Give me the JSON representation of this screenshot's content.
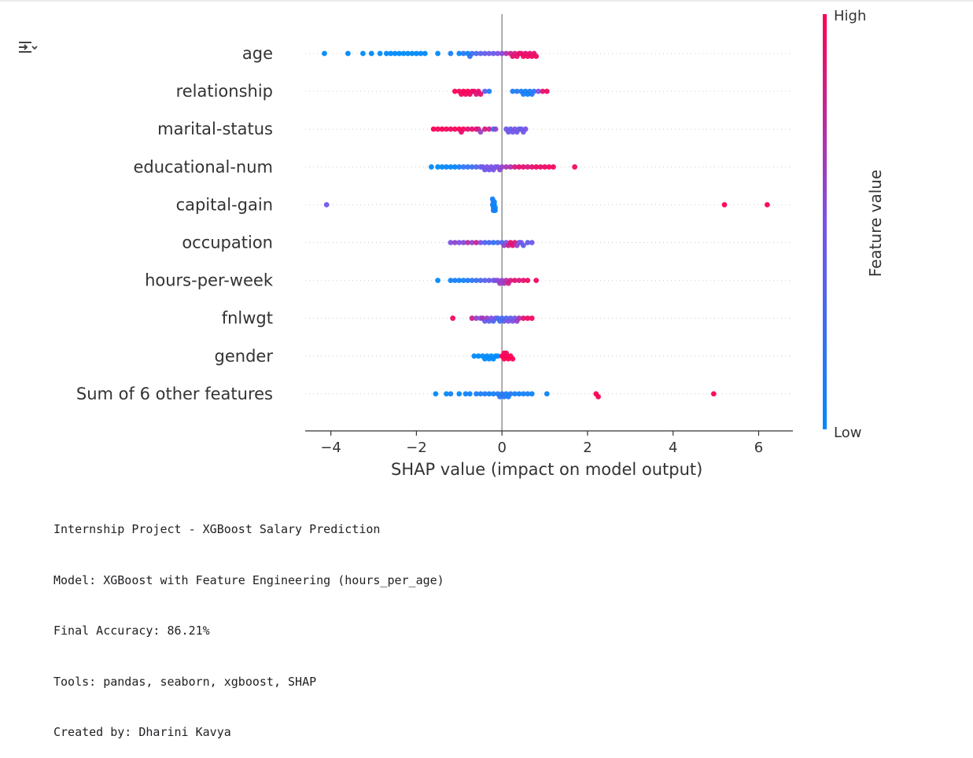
{
  "toolbar": {
    "output_icon": "output-settings-icon"
  },
  "chart_data": {
    "type": "scatter",
    "subtype": "shap-beeswarm",
    "title": "",
    "xlabel": "SHAP value (impact on model output)",
    "ylabel": "",
    "xlim": [
      -4.6,
      6.8
    ],
    "xticks": [
      -4,
      -2,
      0,
      2,
      4,
      6
    ],
    "xtick_labels": [
      "−4",
      "−2",
      "0",
      "2",
      "4",
      "6"
    ],
    "grid": false,
    "features": [
      "age",
      "relationship",
      "marital-status",
      "educational-num",
      "capital-gain",
      "occupation",
      "hours-per-week",
      "fnlwgt",
      "gender",
      "Sum of 6 other features"
    ],
    "colorbar": {
      "label": "Feature value",
      "high_label": "High",
      "low_label": "Low",
      "low_color": "#008afb",
      "mid_color": "#7c52e6",
      "high_color": "#ff0052"
    },
    "series": [
      {
        "feature": "age",
        "points": [
          [
            -4.15,
            0.0
          ],
          [
            -3.6,
            0.0
          ],
          [
            -3.25,
            0.0
          ],
          [
            -3.05,
            0.0
          ],
          [
            -2.85,
            0.0
          ],
          [
            -2.7,
            0.0
          ],
          [
            -2.6,
            0.0
          ],
          [
            -2.5,
            0.0
          ],
          [
            -2.4,
            0.0
          ],
          [
            -2.3,
            0.0
          ],
          [
            -2.2,
            0.0
          ],
          [
            -2.1,
            0.0
          ],
          [
            -2.0,
            0.0
          ],
          [
            -1.9,
            0.0
          ],
          [
            -1.8,
            0.0
          ],
          [
            -1.5,
            0.0
          ],
          [
            -1.2,
            0.1
          ],
          [
            -1.0,
            0.0
          ],
          [
            -0.9,
            0.2
          ],
          [
            -0.8,
            0.0
          ],
          [
            -0.75,
            0.2
          ],
          [
            -0.7,
            0.25
          ],
          [
            -0.6,
            0.3
          ],
          [
            -0.5,
            0.35
          ],
          [
            -0.4,
            0.4
          ],
          [
            -0.3,
            0.45
          ],
          [
            -0.2,
            0.4
          ],
          [
            -0.1,
            0.5
          ],
          [
            0.0,
            0.55
          ],
          [
            0.1,
            0.7
          ],
          [
            0.2,
            0.8
          ],
          [
            0.25,
            0.9
          ],
          [
            0.3,
            0.85
          ],
          [
            0.35,
            0.9
          ],
          [
            0.4,
            0.95
          ],
          [
            0.45,
            0.9
          ],
          [
            0.5,
            0.95
          ],
          [
            0.55,
            0.9
          ],
          [
            0.6,
            0.95
          ],
          [
            0.65,
            0.9
          ],
          [
            0.7,
            0.95
          ],
          [
            0.75,
            0.9
          ],
          [
            0.8,
            0.95
          ]
        ]
      },
      {
        "feature": "relationship",
        "points": [
          [
            -1.1,
            1.0
          ],
          [
            -1.0,
            0.95
          ],
          [
            -0.95,
            0.95
          ],
          [
            -0.9,
            1.0
          ],
          [
            -0.85,
            0.95
          ],
          [
            -0.8,
            1.0
          ],
          [
            -0.75,
            0.95
          ],
          [
            -0.7,
            0.9
          ],
          [
            -0.65,
            0.95
          ],
          [
            -0.6,
            0.85
          ],
          [
            -0.55,
            0.9
          ],
          [
            -0.5,
            0.9
          ],
          [
            -0.4,
            0.4
          ],
          [
            -0.3,
            0.1
          ],
          [
            0.25,
            0.1
          ],
          [
            0.35,
            0.15
          ],
          [
            0.45,
            0.1
          ],
          [
            0.5,
            0.1
          ],
          [
            0.55,
            0.1
          ],
          [
            0.6,
            0.05
          ],
          [
            0.65,
            0.1
          ],
          [
            0.7,
            0.15
          ],
          [
            0.75,
            0.2
          ],
          [
            0.85,
            0.5
          ],
          [
            0.95,
            0.9
          ],
          [
            1.05,
            0.95
          ]
        ]
      },
      {
        "feature": "marital-status",
        "points": [
          [
            -1.6,
            1.0
          ],
          [
            -1.5,
            0.95
          ],
          [
            -1.4,
            1.0
          ],
          [
            -1.3,
            0.95
          ],
          [
            -1.2,
            0.95
          ],
          [
            -1.1,
            0.95
          ],
          [
            -1.0,
            1.0
          ],
          [
            -0.95,
            0.9
          ],
          [
            -0.9,
            0.95
          ],
          [
            -0.8,
            0.9
          ],
          [
            -0.7,
            0.9
          ],
          [
            -0.6,
            0.95
          ],
          [
            -0.55,
            0.8
          ],
          [
            -0.5,
            0.6
          ],
          [
            -0.4,
            0.85
          ],
          [
            -0.3,
            0.8
          ],
          [
            -0.2,
            0.2
          ],
          [
            -0.15,
            0.6
          ],
          [
            0.1,
            0.45
          ],
          [
            0.15,
            0.45
          ],
          [
            0.2,
            0.4
          ],
          [
            0.25,
            0.45
          ],
          [
            0.3,
            0.5
          ],
          [
            0.35,
            0.45
          ],
          [
            0.4,
            0.45
          ],
          [
            0.45,
            0.4
          ],
          [
            0.5,
            0.45
          ],
          [
            0.55,
            0.5
          ]
        ]
      },
      {
        "feature": "educational-num",
        "points": [
          [
            -1.65,
            0.0
          ],
          [
            -1.5,
            0.0
          ],
          [
            -1.4,
            0.0
          ],
          [
            -1.3,
            0.05
          ],
          [
            -1.2,
            0.0
          ],
          [
            -1.1,
            0.05
          ],
          [
            -1.0,
            0.1
          ],
          [
            -0.9,
            0.2
          ],
          [
            -0.8,
            0.2
          ],
          [
            -0.7,
            0.25
          ],
          [
            -0.6,
            0.3
          ],
          [
            -0.5,
            0.4
          ],
          [
            -0.45,
            0.45
          ],
          [
            -0.4,
            0.45
          ],
          [
            -0.35,
            0.5
          ],
          [
            -0.3,
            0.45
          ],
          [
            -0.25,
            0.5
          ],
          [
            -0.2,
            0.5
          ],
          [
            -0.15,
            0.45
          ],
          [
            -0.1,
            0.5
          ],
          [
            -0.05,
            0.55
          ],
          [
            0.0,
            0.6
          ],
          [
            0.1,
            0.65
          ],
          [
            0.2,
            0.7
          ],
          [
            0.3,
            0.85
          ],
          [
            0.4,
            0.9
          ],
          [
            0.5,
            0.9
          ],
          [
            0.6,
            0.85
          ],
          [
            0.7,
            0.9
          ],
          [
            0.8,
            0.95
          ],
          [
            0.9,
            0.9
          ],
          [
            1.0,
            0.95
          ],
          [
            1.1,
            0.95
          ],
          [
            1.2,
            0.95
          ],
          [
            1.7,
            0.95
          ]
        ]
      },
      {
        "feature": "capital-gain",
        "points": [
          [
            -4.1,
            0.45
          ],
          [
            -0.22,
            0.05
          ],
          [
            -0.2,
            0.05
          ],
          [
            -0.18,
            0.05
          ],
          [
            -0.16,
            0.05
          ],
          [
            -0.2,
            0.1
          ],
          [
            -0.18,
            0.1
          ],
          [
            -0.2,
            0.15
          ],
          [
            -0.16,
            0.05
          ],
          [
            -0.22,
            0.1
          ],
          [
            5.2,
            1.0
          ],
          [
            6.2,
            1.0
          ]
        ]
      },
      {
        "feature": "occupation",
        "points": [
          [
            -1.2,
            0.5
          ],
          [
            -1.1,
            0.6
          ],
          [
            -1.0,
            0.5
          ],
          [
            -0.9,
            0.55
          ],
          [
            -0.8,
            0.7
          ],
          [
            -0.7,
            0.6
          ],
          [
            -0.6,
            0.8
          ],
          [
            -0.5,
            0.5
          ],
          [
            -0.4,
            0.3
          ],
          [
            -0.3,
            0.3
          ],
          [
            -0.2,
            0.2
          ],
          [
            -0.1,
            0.3
          ],
          [
            0.0,
            0.3
          ],
          [
            0.05,
            0.6
          ],
          [
            0.1,
            0.5
          ],
          [
            0.15,
            0.8
          ],
          [
            0.2,
            0.9
          ],
          [
            0.25,
            0.9
          ],
          [
            0.3,
            0.85
          ],
          [
            0.35,
            0.6
          ],
          [
            0.4,
            0.5
          ],
          [
            0.45,
            0.45
          ],
          [
            0.5,
            0.4
          ],
          [
            0.6,
            0.4
          ],
          [
            0.7,
            0.45
          ]
        ]
      },
      {
        "feature": "hours-per-week",
        "points": [
          [
            -1.5,
            0.0
          ],
          [
            -1.2,
            0.05
          ],
          [
            -1.1,
            0.1
          ],
          [
            -1.0,
            0.05
          ],
          [
            -0.9,
            0.1
          ],
          [
            -0.8,
            0.1
          ],
          [
            -0.7,
            0.2
          ],
          [
            -0.6,
            0.2
          ],
          [
            -0.5,
            0.3
          ],
          [
            -0.4,
            0.35
          ],
          [
            -0.3,
            0.4
          ],
          [
            -0.2,
            0.5
          ],
          [
            -0.15,
            0.45
          ],
          [
            -0.1,
            0.55
          ],
          [
            -0.05,
            0.6
          ],
          [
            0.0,
            0.6
          ],
          [
            0.05,
            0.65
          ],
          [
            0.1,
            0.7
          ],
          [
            0.15,
            0.8
          ],
          [
            0.2,
            0.85
          ],
          [
            0.3,
            0.9
          ],
          [
            0.4,
            0.85
          ],
          [
            0.5,
            0.9
          ],
          [
            0.6,
            0.95
          ],
          [
            0.8,
            0.95
          ]
        ]
      },
      {
        "feature": "fnlwgt",
        "points": [
          [
            -1.15,
            0.95
          ],
          [
            -0.7,
            0.8
          ],
          [
            -0.6,
            0.6
          ],
          [
            -0.5,
            0.5
          ],
          [
            -0.45,
            0.7
          ],
          [
            -0.4,
            0.4
          ],
          [
            -0.35,
            0.6
          ],
          [
            -0.3,
            0.4
          ],
          [
            -0.25,
            0.5
          ],
          [
            -0.2,
            0.3
          ],
          [
            -0.15,
            0.5
          ],
          [
            -0.1,
            0.3
          ],
          [
            -0.05,
            0.2
          ],
          [
            0.0,
            0.3
          ],
          [
            0.05,
            0.4
          ],
          [
            0.1,
            0.3
          ],
          [
            0.15,
            0.5
          ],
          [
            0.2,
            0.4
          ],
          [
            0.25,
            0.5
          ],
          [
            0.3,
            0.45
          ],
          [
            0.35,
            0.6
          ],
          [
            0.4,
            0.7
          ],
          [
            0.5,
            0.9
          ],
          [
            0.6,
            0.95
          ],
          [
            0.7,
            0.95
          ]
        ]
      },
      {
        "feature": "gender",
        "points": [
          [
            -0.65,
            0.0
          ],
          [
            -0.55,
            0.0
          ],
          [
            -0.45,
            0.0
          ],
          [
            -0.4,
            0.0
          ],
          [
            -0.35,
            0.0
          ],
          [
            -0.3,
            0.0
          ],
          [
            -0.25,
            0.0
          ],
          [
            -0.2,
            0.0
          ],
          [
            -0.15,
            0.0
          ],
          [
            -0.1,
            0.0
          ],
          [
            0.0,
            1.0
          ],
          [
            0.05,
            1.0
          ],
          [
            0.1,
            1.0
          ],
          [
            0.15,
            1.0
          ],
          [
            0.2,
            1.0
          ],
          [
            0.25,
            1.0
          ],
          [
            0.1,
            0.95
          ],
          [
            0.05,
            0.95
          ]
        ]
      },
      {
        "feature": "Sum of 6 other features",
        "points": [
          [
            -1.55,
            0.0
          ],
          [
            -1.3,
            0.0
          ],
          [
            -1.2,
            0.1
          ],
          [
            -1.0,
            0.0
          ],
          [
            -0.85,
            0.05
          ],
          [
            -0.75,
            0.05
          ],
          [
            -0.6,
            0.1
          ],
          [
            -0.5,
            0.1
          ],
          [
            -0.4,
            0.15
          ],
          [
            -0.3,
            0.05
          ],
          [
            -0.2,
            0.1
          ],
          [
            -0.1,
            0.1
          ],
          [
            -0.05,
            0.15
          ],
          [
            0.0,
            0.2
          ],
          [
            0.05,
            0.15
          ],
          [
            0.1,
            0.1
          ],
          [
            0.15,
            0.1
          ],
          [
            0.2,
            0.15
          ],
          [
            0.3,
            0.1
          ],
          [
            0.4,
            0.05
          ],
          [
            0.5,
            0.1
          ],
          [
            0.6,
            0.1
          ],
          [
            0.7,
            0.05
          ],
          [
            1.05,
            0.05
          ],
          [
            2.2,
            1.0
          ],
          [
            2.25,
            1.0
          ],
          [
            4.95,
            1.0
          ]
        ]
      }
    ]
  },
  "console": {
    "lines": [
      "Internship Project - XGBoost Salary Prediction",
      "Model: XGBoost with Feature Engineering (hours_per_age)",
      "Final Accuracy: 86.21%",
      "Tools: pandas, seaborn, xgboost, SHAP",
      "Created by: Dharini Kavya"
    ]
  }
}
